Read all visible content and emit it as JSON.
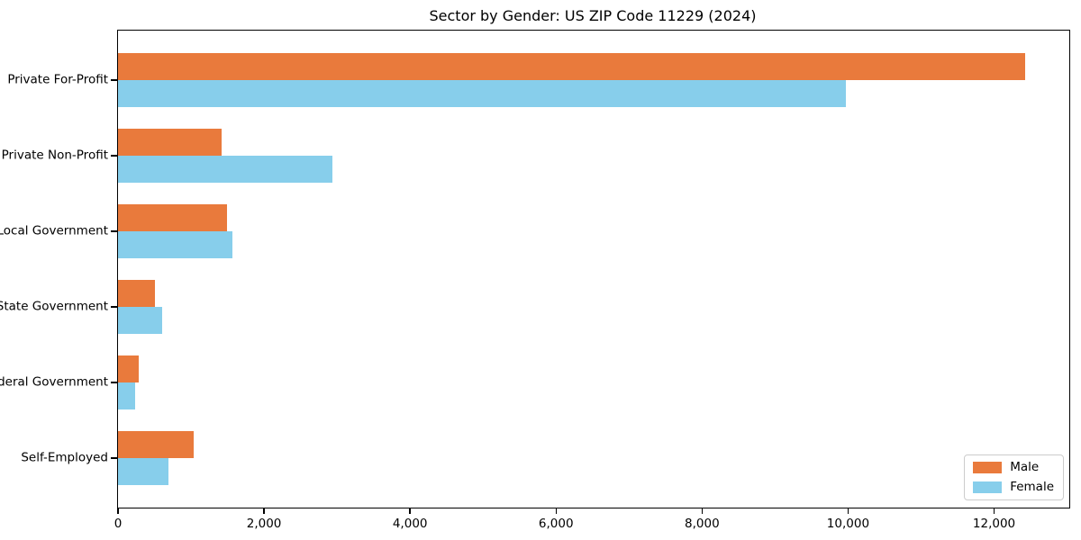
{
  "title": "Sector by Gender: US ZIP Code 11229 (2024)",
  "chart_data": {
    "type": "bar",
    "orientation": "horizontal",
    "title": "Sector by Gender: US ZIP Code 11229 (2024)",
    "categories": [
      "Private For-Profit",
      "Private Non-Profit",
      "Local Government",
      "State Government",
      "Federal Government",
      "Self-Employed"
    ],
    "series": [
      {
        "name": "Male",
        "color": "#E97A3C",
        "values": [
          12430,
          1420,
          1490,
          510,
          280,
          1030
        ]
      },
      {
        "name": "Female",
        "color": "#87CEEB",
        "values": [
          9970,
          2930,
          1570,
          600,
          230,
          690
        ]
      }
    ],
    "xlabel": "",
    "ylabel": "",
    "xlim": [
      0,
      13030
    ],
    "x_ticks": [
      0,
      2000,
      4000,
      6000,
      8000,
      10000,
      12000
    ],
    "x_tick_labels": [
      "0",
      "2,000",
      "4,000",
      "6,000",
      "8,000",
      "10,000",
      "12,000"
    ],
    "grid": false,
    "legend_position": "lower right",
    "background_color": "#ffffff",
    "axis_color": "#000000"
  },
  "legend": {
    "items": [
      {
        "label": "Male",
        "color": "#E97A3C"
      },
      {
        "label": "Female",
        "color": "#87CEEB"
      }
    ]
  }
}
